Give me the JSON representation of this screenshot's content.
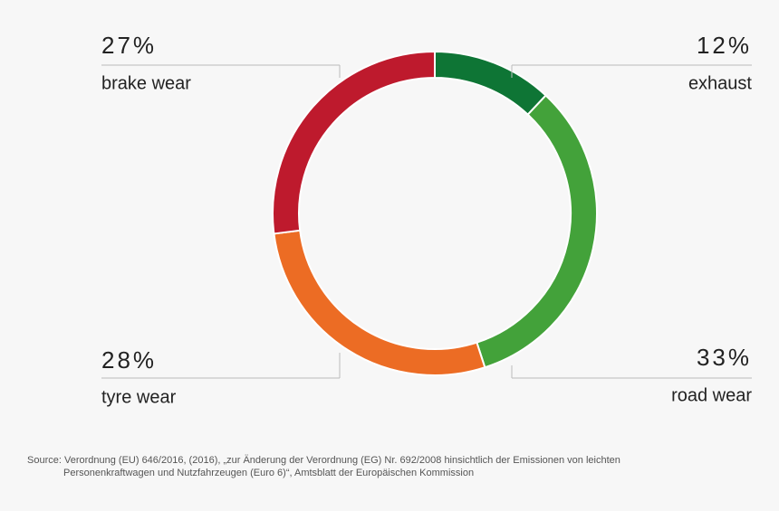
{
  "chart_data": {
    "type": "donut",
    "categories": [
      "exhaust",
      "road wear",
      "tyre wear",
      "brake wear"
    ],
    "values": [
      12,
      33,
      28,
      27
    ],
    "value_labels": [
      "12%",
      "33%",
      "28%",
      "27%"
    ],
    "colors": [
      "#0e7535",
      "#43a23a",
      "#ec6c24",
      "#be1a2d"
    ],
    "source": [
      "Source: Verordnung (EU) 646/2016, (2016), „zur Änderung der Verordnung (EG) Nr. 692/2008 hinsichtlich der Emissionen von leichten",
      "Personenkraftwagen und Nutzfahrzeugen (Euro 6)“, Amtsblatt der Europäischen Kommission"
    ]
  }
}
